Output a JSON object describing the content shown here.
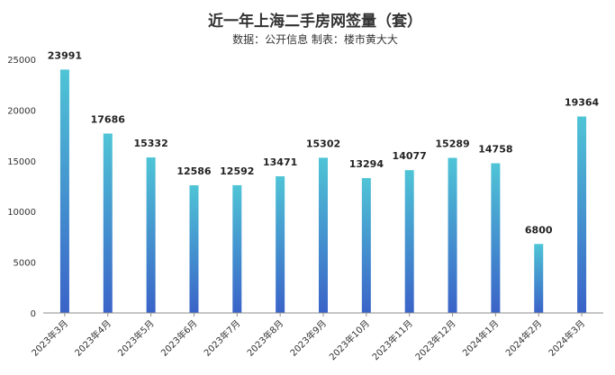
{
  "chart_data": {
    "type": "bar",
    "title": "近一年上海二手房网签量（套）",
    "subtitle": "数据：公开信息   制表：楼市黄大大",
    "categories": [
      "2023年3月",
      "2023年4月",
      "2023年5月",
      "2023年6月",
      "2023年7月",
      "2023年8月",
      "2023年9月",
      "2023年10月",
      "2023年11月",
      "2023年12月",
      "2024年1月",
      "2024年2月",
      "2024年3月"
    ],
    "values": [
      23991,
      17686,
      15332,
      12586,
      12592,
      13471,
      15302,
      13294,
      14077,
      15289,
      14758,
      6800,
      19364
    ],
    "ylim": [
      0,
      25000
    ],
    "yticks": [
      0,
      5000,
      10000,
      15000,
      20000,
      25000
    ],
    "grid": false,
    "legend": "none",
    "bar_gradient": [
      "#4fc4d6",
      "#3a63c8"
    ],
    "label_color": "#222222",
    "highlight_label_color": "#cc0000",
    "highlight_index": 12
  }
}
